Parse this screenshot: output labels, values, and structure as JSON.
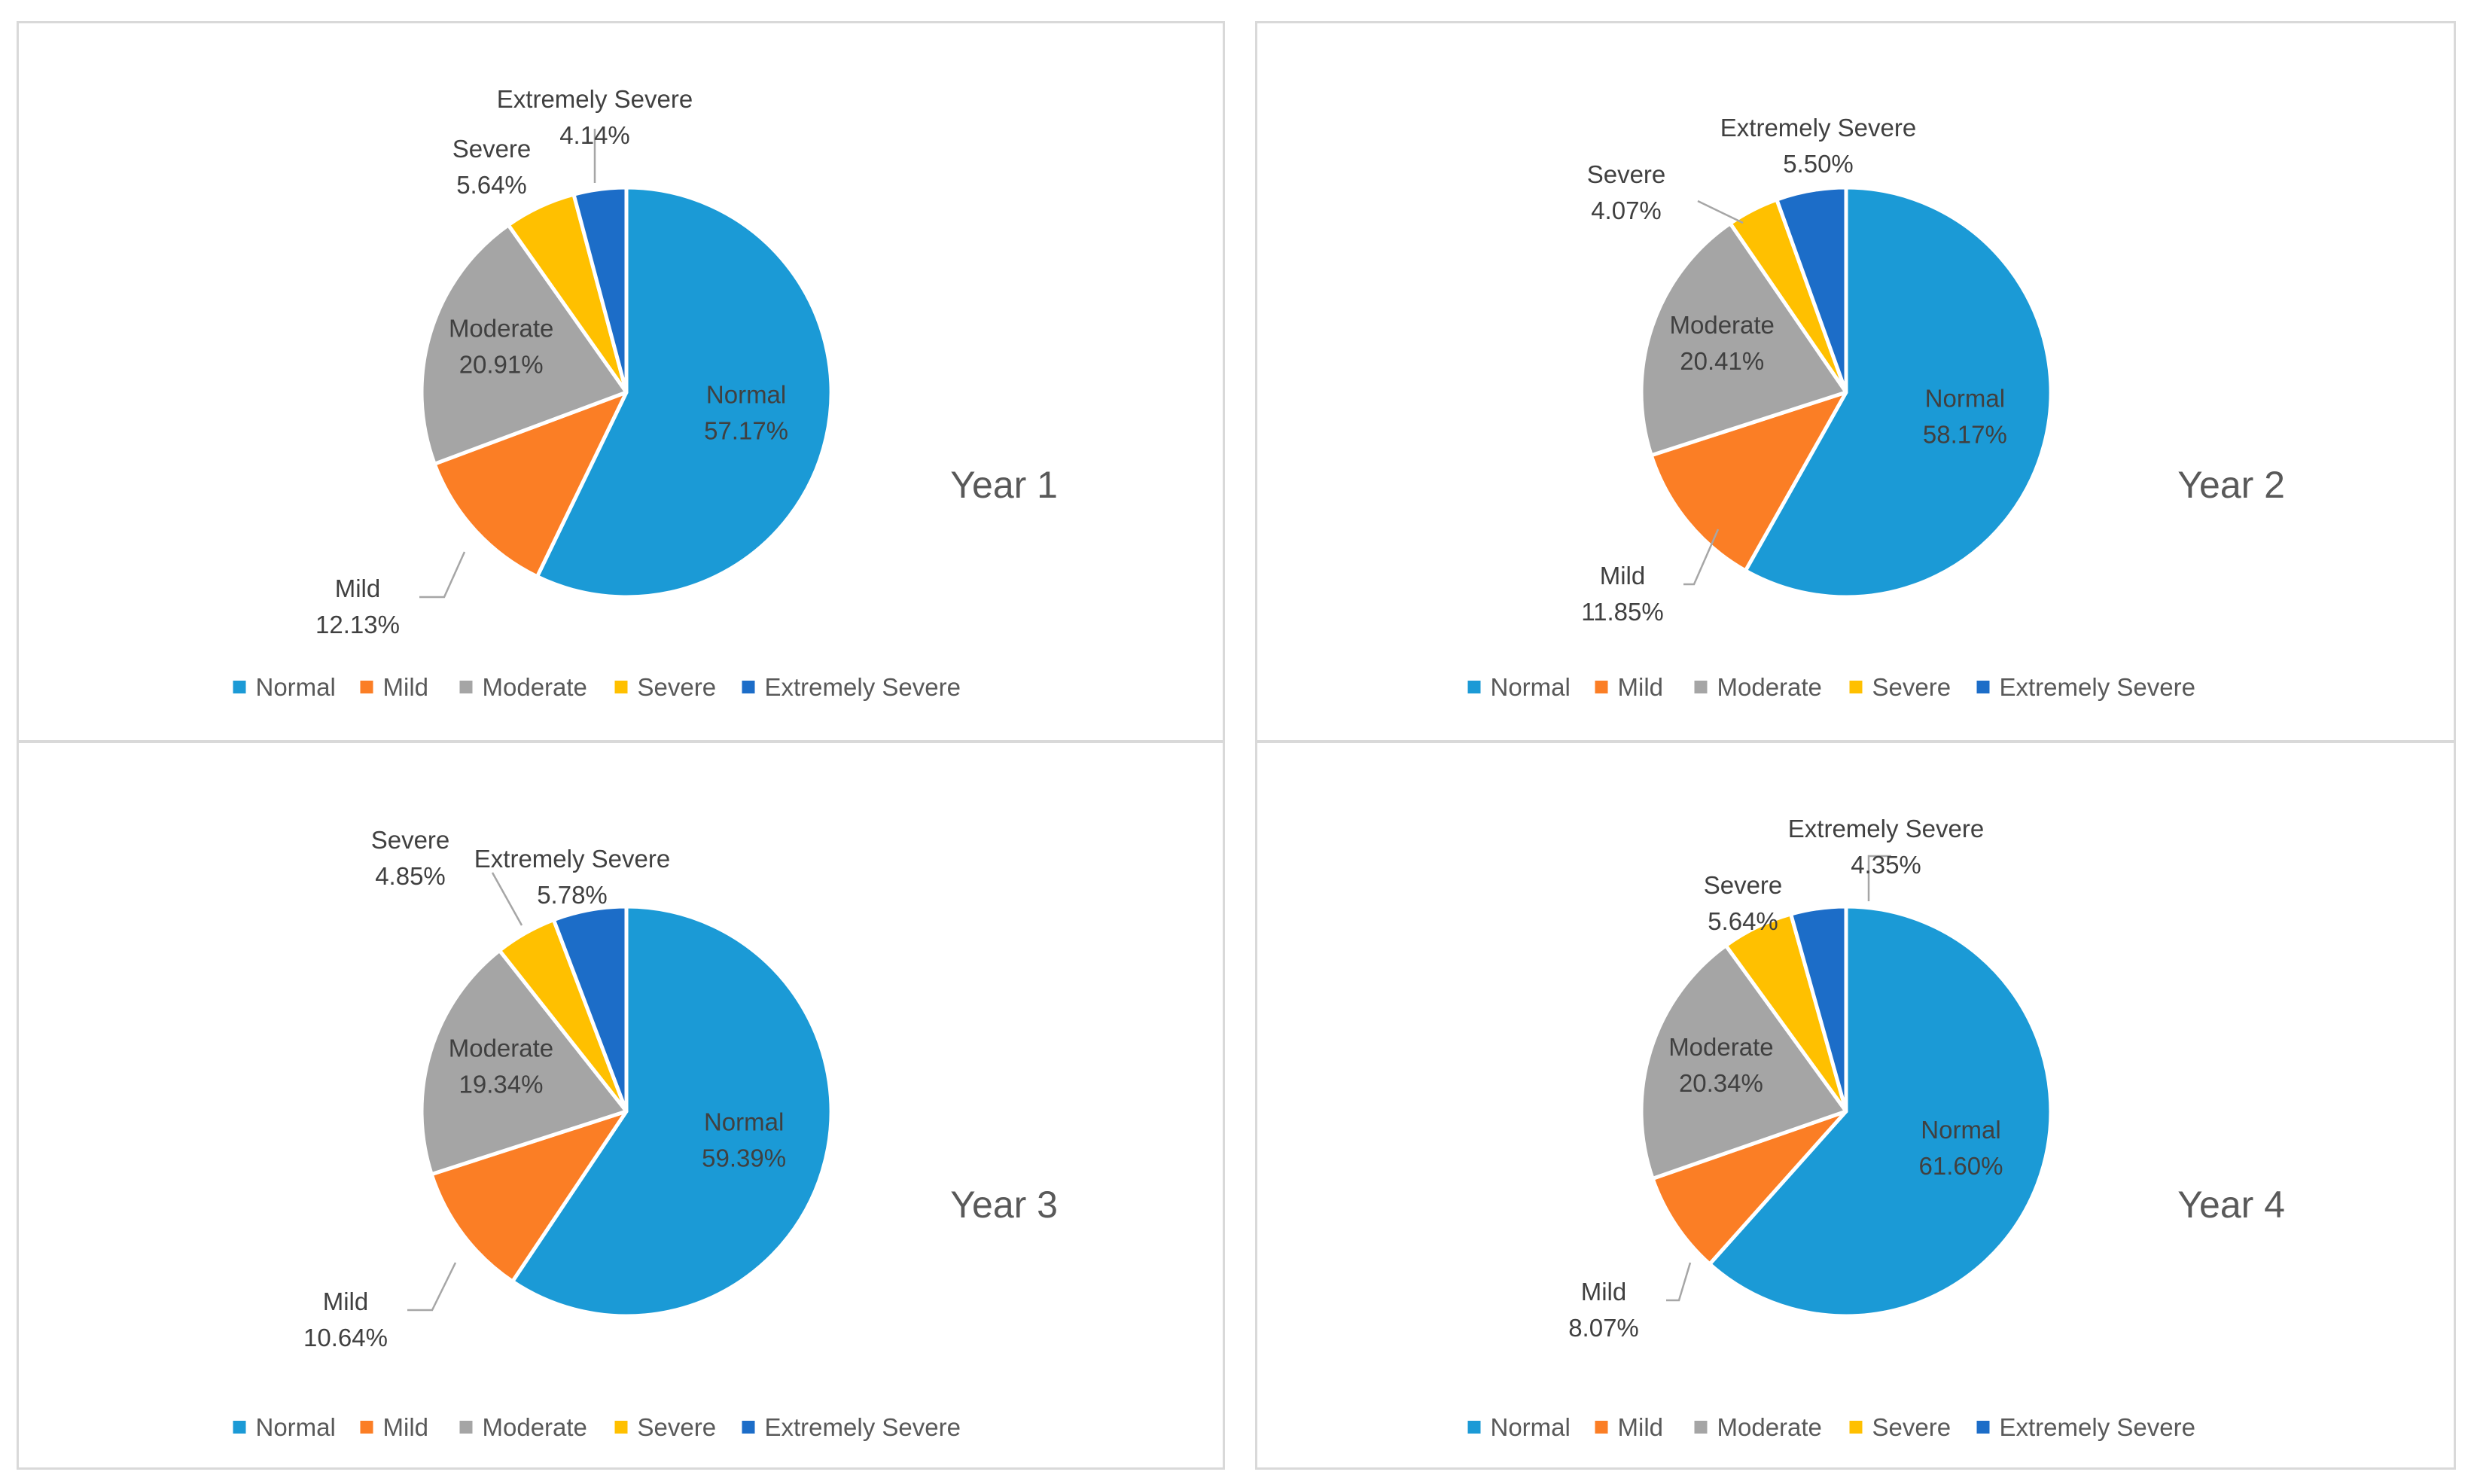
{
  "colors": {
    "Normal": "#1B9AD6",
    "Mild": "#FB7E25",
    "Moderate": "#A5A5A5",
    "Severe": "#FFC000",
    "Extremely Severe": "#1C6DC8"
  },
  "legend": [
    "Normal",
    "Mild",
    "Moderate",
    "Severe",
    "Extremely Severe"
  ],
  "chart_data": [
    {
      "type": "pie",
      "title": "Year 1",
      "categories": [
        "Normal",
        "Mild",
        "Moderate",
        "Severe",
        "Extremely Severe"
      ],
      "values": [
        57.17,
        12.13,
        20.91,
        5.64,
        4.14
      ],
      "labels": [
        "57.17%",
        "12.13%",
        "20.91%",
        "5.64%",
        "4.14%"
      ],
      "legend_position": "bottom"
    },
    {
      "type": "pie",
      "title": "Year 2",
      "categories": [
        "Normal",
        "Mild",
        "Moderate",
        "Severe",
        "Extremely Severe"
      ],
      "values": [
        58.17,
        11.85,
        20.41,
        4.07,
        5.5
      ],
      "labels": [
        "58.17%",
        "11.85%",
        "20.41%",
        "4.07%",
        "5.50%"
      ],
      "legend_position": "bottom"
    },
    {
      "type": "pie",
      "title": "Year 3",
      "categories": [
        "Normal",
        "Mild",
        "Moderate",
        "Severe",
        "Extremely Severe"
      ],
      "values": [
        59.39,
        10.64,
        19.34,
        4.85,
        5.78
      ],
      "labels": [
        "59.39%",
        "10.64%",
        "19.34%",
        "4.85%",
        "5.78%"
      ],
      "legend_position": "bottom"
    },
    {
      "type": "pie",
      "title": "Year 4",
      "categories": [
        "Normal",
        "Mild",
        "Moderate",
        "Severe",
        "Extremely Severe"
      ],
      "values": [
        61.6,
        8.07,
        20.34,
        5.64,
        4.35
      ],
      "labels": [
        "61.60%",
        "8.07%",
        "20.34%",
        "5.64%",
        "4.35%"
      ],
      "legend_position": "bottom"
    }
  ]
}
